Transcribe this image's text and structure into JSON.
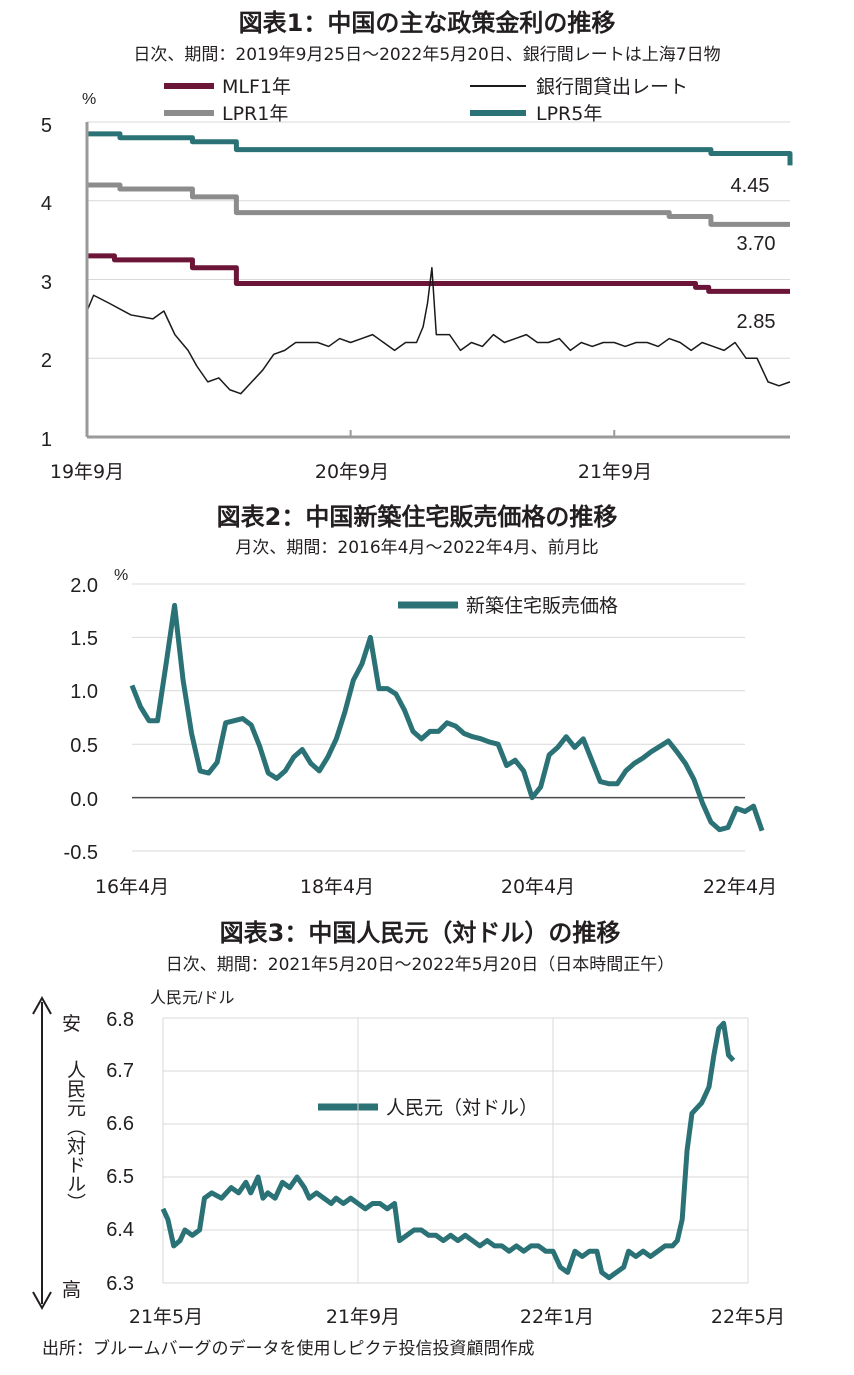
{
  "source": "出所：ブルームバーグのデータを使用しピクテ投信投資顧問作成",
  "colors": {
    "mlf": "#6b1538",
    "lpr1": "#8c8c8c",
    "lpr5": "#2a7276",
    "interbank": "#1a1a1a",
    "teal": "#2a7276"
  },
  "chart_data": [
    {
      "type": "line",
      "title": "図表1：中国の主な政策金利の推移",
      "subtitle": "日次、期間：2019年9月25日～2022年5月20日、銀行間レートは上海7日物",
      "ylabel": "%",
      "ylim": [
        1,
        5
      ],
      "yticks": [
        "1",
        "2",
        "3",
        "4",
        "5"
      ],
      "xticks": [
        "19年9月",
        "20年9月",
        "21年9月"
      ],
      "legend": [
        "MLF1年",
        "銀行間貸出レート",
        "LPR1年",
        "LPR5年"
      ],
      "annotations": [
        "4.45",
        "3.70",
        "2.85"
      ],
      "series": [
        {
          "name": "MLF1年",
          "values": [
            [
              0,
              3.3
            ],
            [
              1.25,
              3.25
            ],
            [
              4.8,
              3.15
            ],
            [
              6.8,
              2.95
            ],
            [
              27.7,
              2.9
            ],
            [
              28.3,
              2.85
            ],
            [
              32.0,
              2.85
            ]
          ]
        },
        {
          "name": "LPR1年",
          "values": [
            [
              0,
              4.2
            ],
            [
              1.5,
              4.15
            ],
            [
              4.8,
              4.05
            ],
            [
              6.8,
              3.85
            ],
            [
              26.5,
              3.8
            ],
            [
              28.4,
              3.7
            ],
            [
              32.0,
              3.7
            ]
          ]
        },
        {
          "name": "LPR5年",
          "values": [
            [
              0,
              4.85
            ],
            [
              1.5,
              4.8
            ],
            [
              4.8,
              4.75
            ],
            [
              6.8,
              4.65
            ],
            [
              28.4,
              4.6
            ],
            [
              31.9,
              4.6
            ],
            [
              32.0,
              4.45
            ]
          ]
        },
        {
          "name": "銀行間貸出レート",
          "values": [
            [
              0,
              2.6
            ],
            [
              0.3,
              2.8
            ],
            [
              1.0,
              2.7
            ],
            [
              2.0,
              2.55
            ],
            [
              3.0,
              2.5
            ],
            [
              3.5,
              2.6
            ],
            [
              4.0,
              2.3
            ],
            [
              4.6,
              2.1
            ],
            [
              5.0,
              1.9
            ],
            [
              5.5,
              1.7
            ],
            [
              6.0,
              1.75
            ],
            [
              6.5,
              1.6
            ],
            [
              7.0,
              1.55
            ],
            [
              7.5,
              1.7
            ],
            [
              8.0,
              1.85
            ],
            [
              8.5,
              2.05
            ],
            [
              9.0,
              2.1
            ],
            [
              9.5,
              2.2
            ],
            [
              10.0,
              2.2
            ],
            [
              10.5,
              2.2
            ],
            [
              11.0,
              2.15
            ],
            [
              11.5,
              2.25
            ],
            [
              12.0,
              2.2
            ],
            [
              12.5,
              2.25
            ],
            [
              13.0,
              2.3
            ],
            [
              13.5,
              2.2
            ],
            [
              14.0,
              2.1
            ],
            [
              14.5,
              2.2
            ],
            [
              15.0,
              2.2
            ],
            [
              15.3,
              2.4
            ],
            [
              15.5,
              2.7
            ],
            [
              15.7,
              3.15
            ],
            [
              15.9,
              2.3
            ],
            [
              16.5,
              2.3
            ],
            [
              17.0,
              2.1
            ],
            [
              17.5,
              2.2
            ],
            [
              18.0,
              2.15
            ],
            [
              18.5,
              2.3
            ],
            [
              19.0,
              2.2
            ],
            [
              19.5,
              2.25
            ],
            [
              20.0,
              2.3
            ],
            [
              20.5,
              2.2
            ],
            [
              21.0,
              2.2
            ],
            [
              21.5,
              2.25
            ],
            [
              22.0,
              2.1
            ],
            [
              22.5,
              2.2
            ],
            [
              23.0,
              2.15
            ],
            [
              23.5,
              2.2
            ],
            [
              24.0,
              2.2
            ],
            [
              24.5,
              2.15
            ],
            [
              25.0,
              2.2
            ],
            [
              25.5,
              2.2
            ],
            [
              26.0,
              2.15
            ],
            [
              26.5,
              2.25
            ],
            [
              27.0,
              2.2
            ],
            [
              27.5,
              2.1
            ],
            [
              28.0,
              2.2
            ],
            [
              28.5,
              2.15
            ],
            [
              29.0,
              2.1
            ],
            [
              29.5,
              2.2
            ],
            [
              30.0,
              2.0
            ],
            [
              30.5,
              2.0
            ],
            [
              31.0,
              1.7
            ],
            [
              31.5,
              1.65
            ],
            [
              32.0,
              1.7
            ]
          ]
        }
      ]
    },
    {
      "type": "line",
      "title": "図表2：中国新築住宅販売価格の推移",
      "subtitle": "月次、期間：2016年4月～2022年4月、前月比",
      "ylabel": "%",
      "ylim": [
        -0.5,
        2.0
      ],
      "yticks": [
        "2.0",
        "1.5",
        "1.0",
        "0.5",
        "0.0",
        "-0.5"
      ],
      "xticks": [
        "16年4月",
        "18年4月",
        "20年4月",
        "22年4月"
      ],
      "legend": [
        "新築住宅販売価格"
      ],
      "series": [
        {
          "name": "新築住宅販売価格",
          "values": [
            1.05,
            0.85,
            0.72,
            0.72,
            1.25,
            1.8,
            1.1,
            0.6,
            0.25,
            0.23,
            0.33,
            0.7,
            0.72,
            0.74,
            0.68,
            0.48,
            0.23,
            0.18,
            0.25,
            0.38,
            0.45,
            0.32,
            0.25,
            0.38,
            0.55,
            0.8,
            1.1,
            1.25,
            1.5,
            1.02,
            1.02,
            0.97,
            0.82,
            0.62,
            0.55,
            0.62,
            0.62,
            0.7,
            0.67,
            0.6,
            0.57,
            0.55,
            0.52,
            0.5,
            0.3,
            0.35,
            0.25,
            0.0,
            0.1,
            0.4,
            0.47,
            0.57,
            0.47,
            0.55,
            0.35,
            0.15,
            0.13,
            0.13,
            0.25,
            0.32,
            0.37,
            0.43,
            0.48,
            0.53,
            0.43,
            0.32,
            0.17,
            -0.05,
            -0.23,
            -0.3,
            -0.28,
            -0.1,
            -0.13,
            -0.08,
            -0.31
          ]
        }
      ]
    },
    {
      "type": "line",
      "title": "図表3：中国人民元（対ドル）の推移",
      "subtitle": "日次、期間：2021年5月20日～2022年5月20日（日本時間正午）",
      "ylabel": "人民元/ドル",
      "side_label": "人民元（対ドル）",
      "side_top": "安",
      "side_bottom": "高",
      "ylim": [
        6.3,
        6.8
      ],
      "yticks": [
        "6.8",
        "6.7",
        "6.6",
        "6.5",
        "6.4",
        "6.3"
      ],
      "xticks": [
        "21年5月",
        "21年9月",
        "22年1月",
        "22年5月"
      ],
      "legend": [
        "人民元（対ドル）"
      ],
      "series": [
        {
          "name": "人民元（対ドル）",
          "values": [
            [
              0,
              6.44
            ],
            [
              0.1,
              6.42
            ],
            [
              0.22,
              6.37
            ],
            [
              0.35,
              6.38
            ],
            [
              0.45,
              6.4
            ],
            [
              0.6,
              6.39
            ],
            [
              0.75,
              6.4
            ],
            [
              0.85,
              6.46
            ],
            [
              1.0,
              6.47
            ],
            [
              1.2,
              6.46
            ],
            [
              1.4,
              6.48
            ],
            [
              1.55,
              6.47
            ],
            [
              1.7,
              6.49
            ],
            [
              1.8,
              6.47
            ],
            [
              1.95,
              6.5
            ],
            [
              2.05,
              6.46
            ],
            [
              2.15,
              6.47
            ],
            [
              2.3,
              6.46
            ],
            [
              2.45,
              6.49
            ],
            [
              2.6,
              6.48
            ],
            [
              2.75,
              6.5
            ],
            [
              2.9,
              6.48
            ],
            [
              3.0,
              6.46
            ],
            [
              3.15,
              6.47
            ],
            [
              3.3,
              6.46
            ],
            [
              3.45,
              6.45
            ],
            [
              3.55,
              6.46
            ],
            [
              3.7,
              6.45
            ],
            [
              3.85,
              6.46
            ],
            [
              4.0,
              6.45
            ],
            [
              4.15,
              6.44
            ],
            [
              4.3,
              6.45
            ],
            [
              4.45,
              6.45
            ],
            [
              4.6,
              6.44
            ],
            [
              4.75,
              6.45
            ],
            [
              4.85,
              6.38
            ],
            [
              5.0,
              6.39
            ],
            [
              5.15,
              6.4
            ],
            [
              5.3,
              6.4
            ],
            [
              5.45,
              6.39
            ],
            [
              5.6,
              6.39
            ],
            [
              5.75,
              6.38
            ],
            [
              5.9,
              6.39
            ],
            [
              6.05,
              6.38
            ],
            [
              6.2,
              6.39
            ],
            [
              6.35,
              6.38
            ],
            [
              6.5,
              6.37
            ],
            [
              6.65,
              6.38
            ],
            [
              6.8,
              6.37
            ],
            [
              6.95,
              6.37
            ],
            [
              7.1,
              6.36
            ],
            [
              7.25,
              6.37
            ],
            [
              7.4,
              6.36
            ],
            [
              7.55,
              6.37
            ],
            [
              7.7,
              6.37
            ],
            [
              7.85,
              6.36
            ],
            [
              8.0,
              6.36
            ],
            [
              8.15,
              6.33
            ],
            [
              8.3,
              6.32
            ],
            [
              8.45,
              6.36
            ],
            [
              8.6,
              6.35
            ],
            [
              8.75,
              6.36
            ],
            [
              8.9,
              6.36
            ],
            [
              9.0,
              6.32
            ],
            [
              9.15,
              6.31
            ],
            [
              9.3,
              6.32
            ],
            [
              9.45,
              6.33
            ],
            [
              9.55,
              6.36
            ],
            [
              9.7,
              6.35
            ],
            [
              9.85,
              6.36
            ],
            [
              10.0,
              6.35
            ],
            [
              10.15,
              6.36
            ],
            [
              10.3,
              6.37
            ],
            [
              10.45,
              6.37
            ],
            [
              10.55,
              6.38
            ],
            [
              10.65,
              6.42
            ],
            [
              10.75,
              6.55
            ],
            [
              10.85,
              6.62
            ],
            [
              10.95,
              6.63
            ],
            [
              11.05,
              6.64
            ],
            [
              11.2,
              6.67
            ],
            [
              11.3,
              6.73
            ],
            [
              11.4,
              6.78
            ],
            [
              11.5,
              6.79
            ],
            [
              11.6,
              6.73
            ],
            [
              11.7,
              6.72
            ]
          ]
        }
      ]
    }
  ]
}
